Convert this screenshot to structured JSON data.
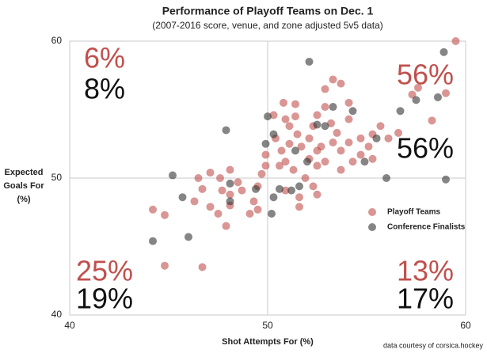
{
  "chart_data": {
    "type": "scatter",
    "title": "Performance of Playoff Teams on Dec. 1",
    "subtitle": "(2007-2016 score, venue, and zone adjusted 5v5 data)",
    "x_label": "Shot Attempts For (%)",
    "y_label": [
      "Expected",
      "Goals For",
      "(%)"
    ],
    "source": "data courtesy of corsica.hockey",
    "xlim": [
      40,
      60
    ],
    "ylim": [
      40,
      60
    ],
    "xticks": [
      40,
      50,
      60
    ],
    "yticks": [
      40,
      50,
      60
    ],
    "grid": true,
    "legend": "right",
    "annotations": [
      {
        "text": "6%",
        "color": "#c0504d"
      },
      {
        "text": "8%",
        "color": "#111111"
      },
      {
        "text": "56%",
        "color": "#c0504d"
      },
      {
        "text": "56%",
        "color": "#111111"
      },
      {
        "text": "25%",
        "color": "#c0504d"
      },
      {
        "text": "19%",
        "color": "#111111"
      },
      {
        "text": "13%",
        "color": "#c0504d"
      },
      {
        "text": "17%",
        "color": "#111111"
      }
    ],
    "series": [
      {
        "name": "Playoff Teams",
        "color": "#c0504d",
        "x": [
          59.5,
          59.0,
          58.3,
          57.6,
          57.3,
          56.6,
          56.1,
          55.7,
          55.3,
          54.7,
          54.1,
          54.1,
          53.7,
          53.3,
          52.9,
          52.9,
          52.5,
          52.3,
          52.1,
          52.7,
          53.3,
          53.7,
          54.3,
          54.7,
          55.3,
          52.9,
          52.5,
          52.1,
          51.7,
          51.5,
          51.1,
          50.9,
          51.4,
          51.4,
          50.8,
          50.3,
          50.4,
          50.7,
          50.9,
          51.3,
          51.9,
          52.3,
          52.5,
          51.6,
          51.6,
          50.9,
          50.6,
          49.9,
          49.7,
          49.9,
          49.5,
          49.3,
          49.1,
          49.5,
          48.7,
          48.5,
          48.1,
          47.7,
          48.1,
          48.1,
          47.6,
          47.1,
          46.5,
          46.7,
          46.3,
          47.1,
          47.5,
          47.9,
          46.7,
          44.8,
          44.2,
          44.8,
          53.7,
          53.5,
          54.1,
          55.1,
          51.1,
          52.5,
          53.2
        ],
        "values": [
          60.0,
          56.2,
          54.2,
          56.6,
          56.1,
          53.3,
          52.9,
          53.8,
          53.2,
          52.9,
          55.5,
          54.3,
          56.9,
          57.2,
          56.5,
          55.2,
          54.6,
          53.8,
          52.9,
          52.3,
          52.6,
          52.0,
          51.2,
          51.7,
          51.4,
          51.2,
          50.9,
          51.4,
          52.3,
          53.2,
          53.8,
          54.3,
          55.4,
          54.5,
          55.5,
          54.6,
          52.9,
          52.0,
          51.2,
          50.6,
          50.0,
          49.4,
          48.8,
          48.6,
          47.9,
          49.1,
          50.9,
          50.9,
          50.3,
          51.7,
          49.4,
          48.3,
          47.4,
          47.7,
          49.1,
          49.7,
          48.8,
          49.1,
          48.0,
          50.6,
          50.0,
          50.4,
          50.0,
          49.2,
          48.3,
          47.9,
          47.4,
          46.5,
          43.5,
          43.6,
          47.7,
          47.3,
          50.6,
          53.3,
          52.6,
          52.3,
          52.5,
          52.0,
          54.0
        ]
      },
      {
        "name": "Conference Finalists",
        "color": "#333333",
        "x": [
          58.9,
          58.6,
          57.5,
          56.7,
          55.5,
          54.9,
          54.3,
          53.3,
          52.5,
          52.1,
          50.0,
          49.9,
          50.3,
          51.4,
          52.0,
          51.6,
          51.2,
          50.6,
          50.3,
          50.2,
          49.4,
          48.1,
          47.9,
          48.1,
          45.7,
          45.2,
          46.0,
          44.2,
          59.0,
          56.0,
          52.9
        ],
        "values": [
          59.2,
          55.9,
          55.7,
          54.9,
          52.9,
          51.2,
          54.9,
          55.2,
          53.9,
          58.5,
          54.5,
          52.5,
          53.2,
          52.0,
          51.2,
          49.4,
          49.1,
          49.2,
          48.6,
          47.4,
          49.2,
          49.6,
          53.5,
          48.3,
          48.6,
          50.2,
          45.7,
          45.4,
          49.9,
          50.0,
          53.8
        ]
      }
    ]
  }
}
